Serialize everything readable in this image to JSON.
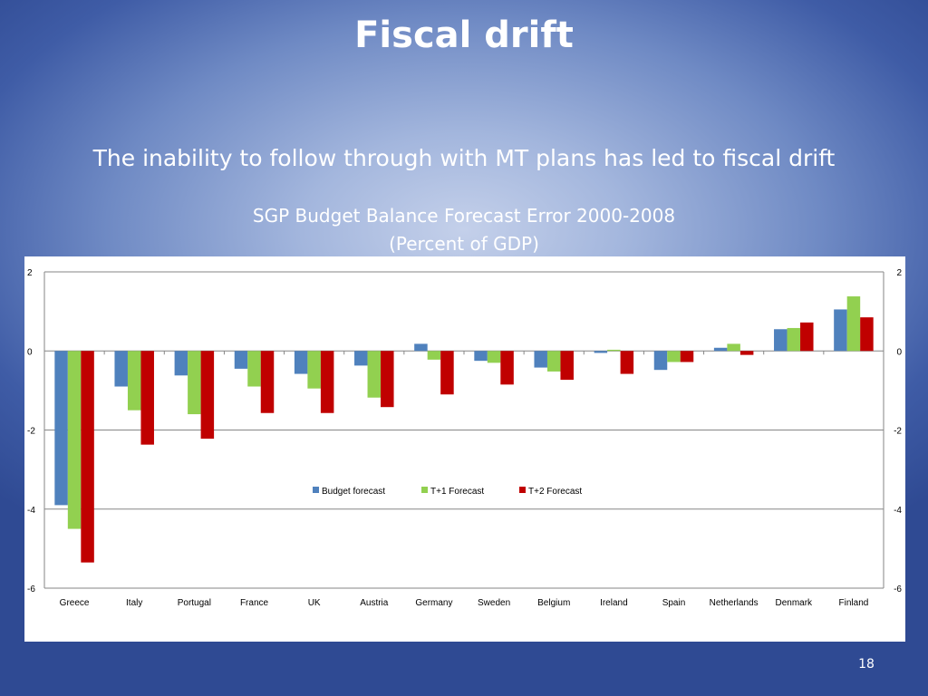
{
  "slide": {
    "title": "Fiscal drift",
    "subtitle": "The inability to follow through with MT plans has led to fiscal drift",
    "page_number": "18"
  },
  "chart_data": {
    "type": "bar",
    "title": "SGP Budget Balance Forecast Error 2000-2008",
    "subtitle": "(Percent of GDP)",
    "xlabel": "",
    "ylabel": "",
    "ylim": [
      -6,
      2
    ],
    "yticks": [
      -6,
      -4,
      -2,
      0,
      2
    ],
    "ytick_labels": [
      "-6",
      "-4",
      "-2",
      "0",
      "2"
    ],
    "secondary_yaxis": true,
    "grid": true,
    "legend_position": "center",
    "categories": [
      "Greece",
      "Italy",
      "Portugal",
      "France",
      "UK",
      "Austria",
      "Germany",
      "Sweden",
      "Belgium",
      "Ireland",
      "Spain",
      "Netherlands",
      "Denmark",
      "Finland"
    ],
    "series": [
      {
        "name": "Budget forecast",
        "color": "#4f81bd",
        "values": [
          -3.9,
          -0.9,
          -0.62,
          -0.45,
          -0.58,
          -0.37,
          0.18,
          -0.25,
          -0.42,
          -0.05,
          -0.48,
          0.08,
          0.55,
          1.05
        ]
      },
      {
        "name": "T+1 Forecast",
        "color": "#92d050",
        "values": [
          -4.5,
          -1.5,
          -1.6,
          -0.9,
          -0.95,
          -1.18,
          -0.22,
          -0.3,
          -0.52,
          0.03,
          -0.28,
          0.18,
          0.58,
          1.38
        ]
      },
      {
        "name": "T+2 Forecast",
        "color": "#c00000",
        "values": [
          -5.35,
          -2.37,
          -2.22,
          -1.57,
          -1.57,
          -1.42,
          -1.1,
          -0.85,
          -0.73,
          -0.58,
          -0.28,
          -0.1,
          0.72,
          0.85
        ]
      }
    ]
  }
}
